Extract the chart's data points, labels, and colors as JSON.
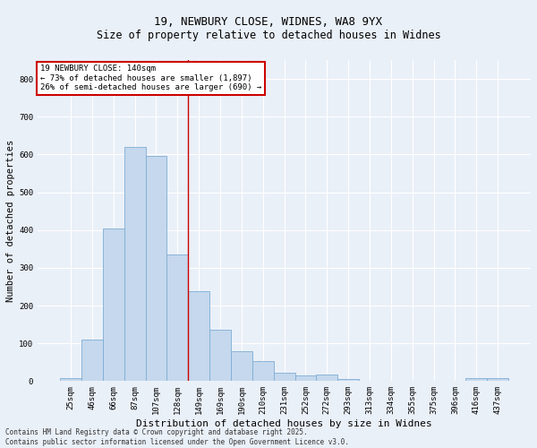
{
  "title1": "19, NEWBURY CLOSE, WIDNES, WA8 9YX",
  "title2": "Size of property relative to detached houses in Widnes",
  "xlabel": "Distribution of detached houses by size in Widnes",
  "ylabel": "Number of detached properties",
  "categories": [
    "25sqm",
    "46sqm",
    "66sqm",
    "87sqm",
    "107sqm",
    "128sqm",
    "149sqm",
    "169sqm",
    "190sqm",
    "210sqm",
    "231sqm",
    "252sqm",
    "272sqm",
    "293sqm",
    "313sqm",
    "334sqm",
    "355sqm",
    "375sqm",
    "396sqm",
    "416sqm",
    "437sqm"
  ],
  "values": [
    7,
    110,
    405,
    620,
    597,
    335,
    237,
    137,
    80,
    52,
    23,
    16,
    18,
    5,
    0,
    0,
    0,
    0,
    0,
    8,
    8
  ],
  "bar_color": "#c5d8ed",
  "bar_edgecolor": "#7eadd4",
  "vline_x": 5.5,
  "vline_color": "#cc0000",
  "annotation_text": "19 NEWBURY CLOSE: 140sqm\n← 73% of detached houses are smaller (1,897)\n26% of semi-detached houses are larger (690) →",
  "annotation_box_color": "#ffffff",
  "annotation_box_edgecolor": "#cc0000",
  "footer": "Contains HM Land Registry data © Crown copyright and database right 2025.\nContains public sector information licensed under the Open Government Licence v3.0.",
  "ylim": [
    0,
    850
  ],
  "yticks": [
    0,
    100,
    200,
    300,
    400,
    500,
    600,
    700,
    800
  ],
  "background_color": "#eaf0f8",
  "plot_background": "#eaf0f8",
  "grid_color": "#ffffff",
  "title1_fontsize": 9,
  "title2_fontsize": 8.5,
  "xlabel_fontsize": 8,
  "ylabel_fontsize": 7.5,
  "tick_fontsize": 6.5,
  "annotation_fontsize": 6.5,
  "footer_fontsize": 5.5
}
